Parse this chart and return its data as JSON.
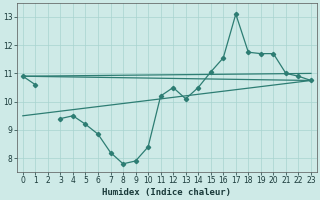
{
  "xlabel": "Humidex (Indice chaleur)",
  "x_values": [
    0,
    1,
    2,
    3,
    4,
    5,
    6,
    7,
    8,
    9,
    10,
    11,
    12,
    13,
    14,
    15,
    16,
    17,
    18,
    19,
    20,
    21,
    22,
    23
  ],
  "line_zigzag": [
    10.9,
    10.6,
    null,
    9.4,
    9.5,
    9.2,
    8.85,
    8.2,
    7.8,
    7.9,
    8.4,
    10.2,
    10.5,
    10.1,
    10.5,
    11.05,
    11.55,
    13.1,
    11.75,
    11.7,
    11.7,
    11.0,
    10.9,
    10.75
  ],
  "straight_line1_x": [
    0,
    23
  ],
  "straight_line1_y": [
    10.9,
    10.75
  ],
  "straight_line2_x": [
    0,
    23
  ],
  "straight_line2_y": [
    10.9,
    11.0
  ],
  "straight_line3_x": [
    0,
    23
  ],
  "straight_line3_y": [
    9.5,
    10.75
  ],
  "bg_color": "#ceeae7",
  "grid_color": "#a8d4d0",
  "line_color": "#2d7d73",
  "ylim": [
    7.5,
    13.5
  ],
  "xlim": [
    -0.5,
    23.5
  ],
  "yticks": [
    8,
    9,
    10,
    11,
    12,
    13
  ],
  "xticks": [
    0,
    1,
    2,
    3,
    4,
    5,
    6,
    7,
    8,
    9,
    10,
    11,
    12,
    13,
    14,
    15,
    16,
    17,
    18,
    19,
    20,
    21,
    22,
    23
  ],
  "figsize": [
    3.2,
    2.0
  ],
  "dpi": 100,
  "tick_fontsize": 5.5,
  "xlabel_fontsize": 6.5
}
